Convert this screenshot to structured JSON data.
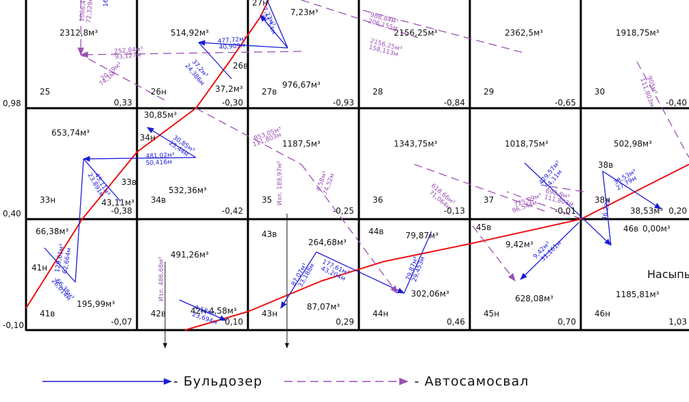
{
  "legend": {
    "bulldozer": "- Бульдозер",
    "truck": "- Автосамосвал"
  },
  "embankment_label": "Насыпь",
  "row_elevations": [
    "0,98",
    "0,40",
    "-0,10"
  ],
  "cells": [
    {
      "id": "25",
      "elev": "0,33",
      "vol": "2312,8м³"
    },
    {
      "id": "26н",
      "elev": "-0,30",
      "vol": "514,92м³"
    },
    {
      "id": "27в",
      "elev": "-0,93",
      "vol": "976,67м³"
    },
    {
      "id": "28",
      "elev": "-0,84",
      "vol": "2156,25м³"
    },
    {
      "id": "29",
      "elev": "-0,65",
      "vol": "2362,5м³"
    },
    {
      "id": "30",
      "elev": "-0,40",
      "vol": "1918,75м³"
    },
    {
      "id": "33н",
      "elev": "-0,38",
      "vol": "653,74м³"
    },
    {
      "id": "34в",
      "elev": "-0,42",
      "vol": "532,36м³"
    },
    {
      "id": "35",
      "elev": "-0,25",
      "vol": "1187,5м³"
    },
    {
      "id": "36",
      "elev": "-0,13",
      "vol": "1343,75м³"
    },
    {
      "id": "37",
      "elev": "-0,01",
      "vol": "1018,75м³"
    },
    {
      "id": "38н",
      "elev": "0,20",
      "vol": "502,98м³"
    },
    {
      "id": "41в",
      "elev": "-0,07",
      "vol": "195,99м³"
    },
    {
      "id": "42в",
      "elev": "0,10",
      "vol": "491,26м³"
    },
    {
      "id": "43н",
      "elev": "0,29",
      "vol": "87,07м³"
    },
    {
      "id": "44н",
      "elev": "0,46",
      "vol": "302,06м³"
    },
    {
      "id": "45н",
      "elev": "0,70",
      "vol": "628,08м³"
    },
    {
      "id": "46н",
      "elev": "1,03",
      "vol": "1185,81м³"
    }
  ],
  "extra_labels": [
    "27н",
    "7,23м³",
    "26в",
    "37,2м³",
    "30,85м³",
    "34н",
    "33в",
    "43,11м³",
    "66,38м³",
    "41н",
    "42н",
    "4,58м³",
    "43в",
    "264,68м³",
    "44в",
    "79,87м³",
    "45в",
    "9,42м³",
    "38в",
    "38,53м³",
    "46в",
    "0,00м³"
  ],
  "bulldozer_labels": [
    "7,23м³",
    "21,54м",
    "477,72м³",
    "40,909м",
    "37,2м³",
    "24,386м",
    "30,85м³",
    "25,44м",
    "481,02м³",
    "50,416м",
    "43,11м³",
    "23,891м",
    "129,61м³",
    "62,664м",
    "66,38м³",
    "26,014м",
    "4,58м³",
    "23,694м",
    "87,07м³",
    "33,188м",
    "177,61м³",
    "43,204м",
    "79,87м³",
    "29,453м",
    "429,57м³",
    "54,11м",
    "9,42м³",
    "31,161м",
    "38,53м³",
    "27,79м",
    "46,22м"
  ],
  "truck_labels": [
    "1086,48м³",
    "72,329м",
    "252,84м³",
    "93,127м",
    "20,49м³",
    "74,1м",
    "988,84м³",
    "206,155м",
    "2156,25м³",
    "158,113м",
    "853,05м³",
    "111,803м",
    "4,58м³",
    "74,52м",
    "618,66м³",
    "71,064м",
    "725,09м³",
    "96,544м",
    "690,8м³",
    "111,803м",
    "905м³",
    "111,803м"
  ],
  "excavation_labels": [
    "Изл. 189,97м³",
    "Изл. 486,68м³"
  ],
  "misc": [
    "16"
  ]
}
